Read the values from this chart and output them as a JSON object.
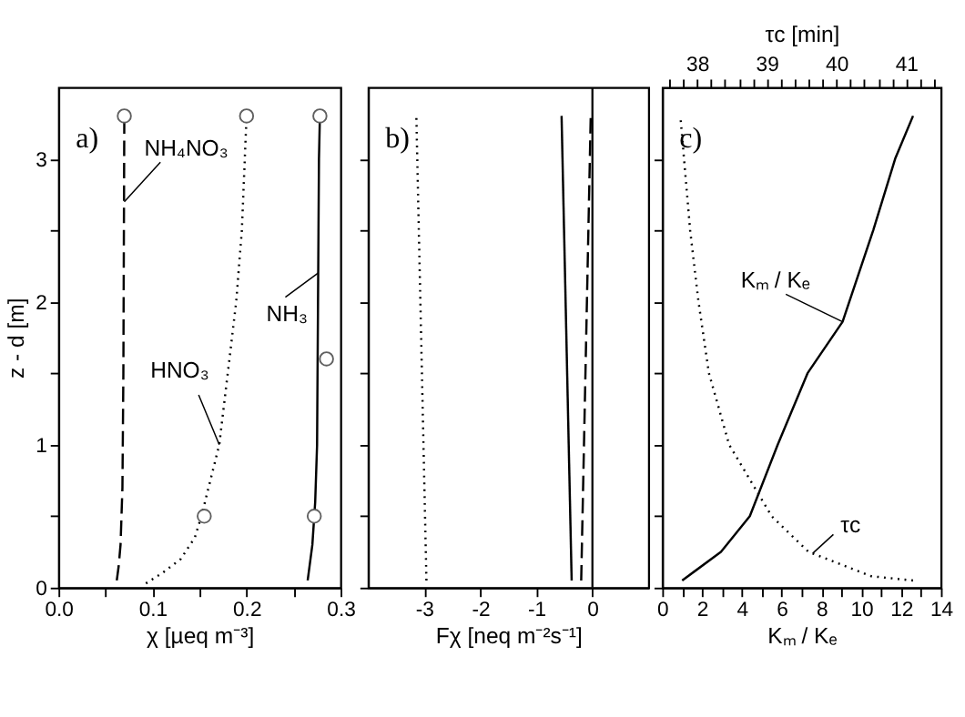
{
  "chart_data": [
    {
      "type": "line",
      "xlabel": "χ [µeq m⁻³]",
      "ylabel": "z - d [m]",
      "xlim": [
        0,
        0.3
      ],
      "ylim": [
        0,
        3.5
      ],
      "xticks": [
        {
          "value": 0,
          "label": "0.0"
        },
        {
          "value": 0.05,
          "label": null
        },
        {
          "value": 0.1,
          "label": "0.1"
        },
        {
          "value": 0.15,
          "label": null
        },
        {
          "value": 0.2,
          "label": "0.2"
        },
        {
          "value": 0.25,
          "label": null
        },
        {
          "value": 0.3,
          "label": "0.3"
        }
      ],
      "yticks": [
        0,
        {
          "value": 0.5,
          "label": null
        },
        1,
        {
          "value": 1.5,
          "label": null
        },
        2,
        {
          "value": 2.5,
          "label": null
        },
        3
      ],
      "grid": false,
      "series": [
        {
          "line_style": "dashed",
          "color": "#000000",
          "x": [
            0.062,
            0.064,
            0.066,
            0.068,
            0.069,
            0.07
          ],
          "values": [
            0.05,
            0.15,
            0.3,
            0.7,
            1.5,
            3.3
          ]
        },
        {
          "line_style": "dotted",
          "color": "#000000",
          "x": [
            0.093,
            0.11,
            0.13,
            0.145,
            0.152,
            0.171,
            0.18,
            0.189,
            0.195,
            0.2
          ],
          "values": [
            0.03,
            0.1,
            0.2,
            0.35,
            0.5,
            1.0,
            1.5,
            2.0,
            2.5,
            3.3
          ]
        },
        {
          "line_style": "solid",
          "color": "#000000",
          "x": [
            0.265,
            0.27,
            0.273,
            0.275,
            0.276,
            0.277,
            0.278
          ],
          "values": [
            0.05,
            0.3,
            0.6,
            1.0,
            2.0,
            3.0,
            3.3
          ]
        },
        {
          "type": "scatter",
          "marker": "circle",
          "color": "#606060",
          "x": [
            0.07,
            0.2,
            0.155,
            0.278,
            0.285,
            0.272
          ],
          "values": [
            3.3,
            3.3,
            0.5,
            3.3,
            1.6,
            0.5
          ]
        }
      ],
      "annotations": [
        "a)",
        {
          "text": "NH₄NO₃",
          "x": 0.07,
          "y": 2.7
        },
        {
          "text": "HNO₃",
          "x": 0.171,
          "y": 1.0
        },
        {
          "text": "NH₃",
          "x": 0.276,
          "y": 2.2
        }
      ]
    },
    {
      "type": "line",
      "xlabel": "Fχ [neq m⁻²s⁻¹]",
      "xlim": [
        -4,
        1
      ],
      "ylim": [
        0,
        3.5
      ],
      "xticks": [
        -3,
        -2,
        -1,
        0
      ],
      "yticks": [
        0,
        {
          "value": 0.5,
          "label": null
        },
        1,
        {
          "value": 1.5,
          "label": null
        },
        2,
        {
          "value": 2.5,
          "label": null
        },
        3
      ],
      "tick_labels": "x",
      "grid": false,
      "series": [
        {
          "line_style": "dotted",
          "color": "#000000",
          "x": [
            -2.96,
            -3.14
          ],
          "values": [
            0.05,
            3.3
          ]
        },
        {
          "line_style": "solid",
          "color": "#000000",
          "x": [
            -0.37,
            -0.55
          ],
          "values": [
            0.05,
            3.3
          ]
        },
        {
          "line_style": "dashed",
          "color": "#000000",
          "x": [
            -0.2,
            -0.03
          ],
          "values": [
            0.05,
            3.3
          ]
        }
      ],
      "ref_lines": [
        {
          "axis": "x",
          "value": 0,
          "color": "#000000"
        }
      ],
      "annotations": [
        "b)"
      ]
    },
    {
      "type": "line",
      "xlabel": "Kₘ / Kₑ",
      "x2label": "τc [min]",
      "xlim": [
        0,
        14
      ],
      "x2lim": [
        37.5,
        41.5
      ],
      "ylim": [
        0,
        3.5
      ],
      "xticks": [
        0,
        {
          "value": 1,
          "label": null
        },
        2,
        {
          "value": 3,
          "label": null
        },
        4,
        {
          "value": 5,
          "label": null
        },
        6,
        {
          "value": 7,
          "label": null
        },
        8,
        {
          "value": 9,
          "label": null
        },
        10,
        {
          "value": 11,
          "label": null
        },
        12,
        {
          "value": 13,
          "label": null
        },
        14
      ],
      "x2ticks": [
        {
          "value": 37.6,
          "label": null
        },
        {
          "value": 37.8,
          "label": null
        },
        38,
        {
          "value": 38.2,
          "label": null
        },
        {
          "value": 38.4,
          "label": null
        },
        {
          "value": 38.6,
          "label": null
        },
        {
          "value": 38.8,
          "label": null
        },
        39,
        {
          "value": 39.2,
          "label": null
        },
        {
          "value": 39.4,
          "label": null
        },
        {
          "value": 39.6,
          "label": null
        },
        {
          "value": 39.8,
          "label": null
        },
        40,
        {
          "value": 40.2,
          "label": null
        },
        {
          "value": 40.4,
          "label": null
        },
        {
          "value": 40.6,
          "label": null
        },
        {
          "value": 40.8,
          "label": null
        },
        41,
        {
          "value": 41.2,
          "label": null
        },
        {
          "value": 41.4,
          "label": null
        }
      ],
      "yticks": [
        0,
        {
          "value": 0.5,
          "label": null
        },
        1,
        {
          "value": 1.5,
          "label": null
        },
        2,
        {
          "value": 2.5,
          "label": null
        },
        3
      ],
      "tick_labels": "x",
      "grid": false,
      "series": [
        {
          "line_style": "solid",
          "color": "#000000",
          "x": [
            1.0,
            2.95,
            4.4,
            5.8,
            7.3,
            9.06,
            10.6,
            11.7,
            12.6
          ],
          "values": [
            0.05,
            0.25,
            0.5,
            1.0,
            1.5,
            1.86,
            2.5,
            3.0,
            3.3
          ]
        },
        {
          "line_style": "dotted",
          "axis": "x2",
          "color": "#000000",
          "x": [
            41.1,
            40.5,
            39.6,
            39.07,
            38.46,
            38.17,
            38.02,
            37.9,
            37.76
          ],
          "values": [
            0.05,
            0.08,
            0.25,
            0.5,
            1.0,
            1.5,
            2.0,
            2.5,
            3.3
          ]
        }
      ],
      "annotations": [
        "c)",
        {
          "text": "Kₘ / Kₑ",
          "x": 9.06,
          "y": 1.86
        },
        {
          "text": "τc",
          "x": 7.56,
          "y": 0.24
        }
      ]
    }
  ]
}
